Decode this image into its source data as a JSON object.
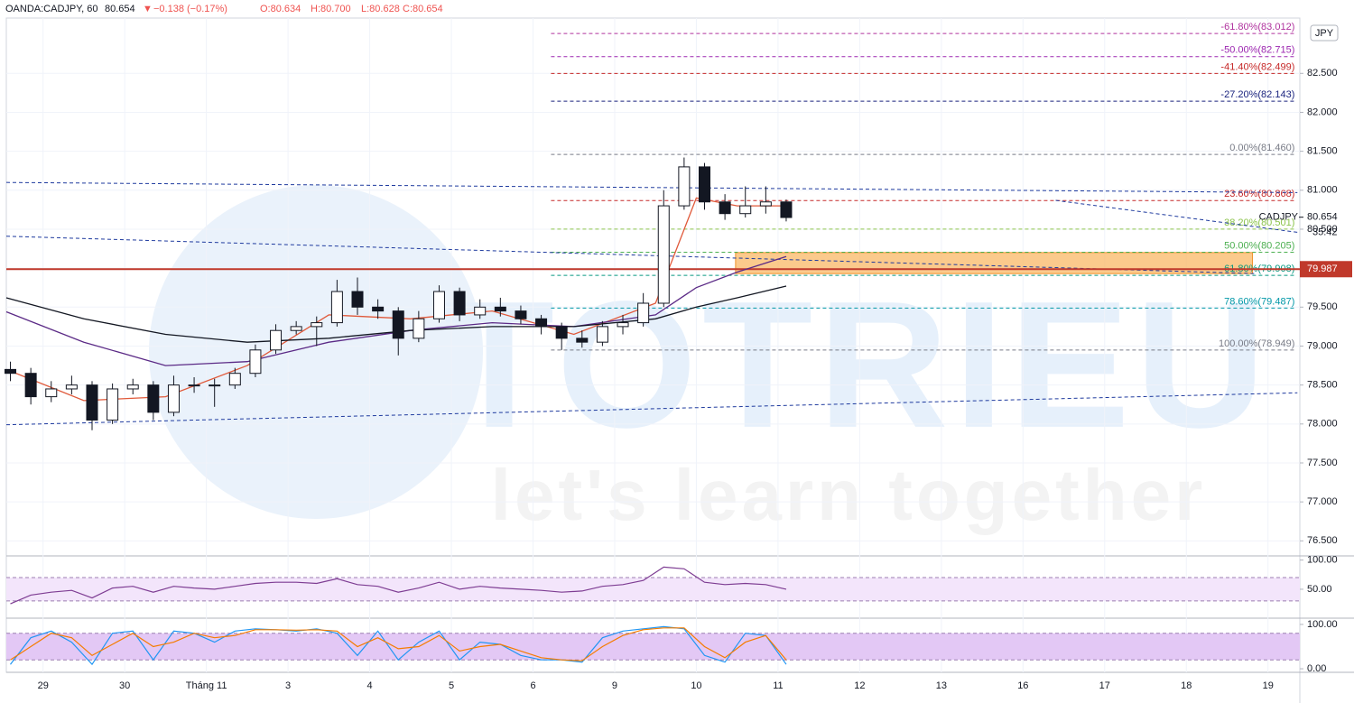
{
  "header": {
    "symbol": "OANDA:CADJPY, 60",
    "last": "80.654",
    "arrow": "▼",
    "change": "−0.138 (−0.17%)",
    "o": "O:80.634",
    "h": "H:80.700",
    "l": "L:80.628",
    "c": "C:80.654"
  },
  "watermark": {
    "brand": "TOTRIEU",
    "slogan": "let's learn together"
  },
  "currency": "JPY",
  "chart_data": [
    {
      "type": "candlestick",
      "panel": "price",
      "x": [
        -0.4,
        -0.15,
        0.1,
        0.35,
        0.6,
        0.85,
        1.1,
        1.35,
        1.6,
        1.85,
        2.1,
        2.35,
        2.6,
        2.85,
        3.1,
        3.35,
        3.6,
        3.85,
        4.1,
        4.35,
        4.6,
        4.85,
        5.1,
        5.35,
        5.6,
        5.85,
        6.1,
        6.35,
        6.6,
        6.85,
        7.1,
        7.35,
        7.6,
        7.85,
        8.1,
        8.35,
        8.6,
        8.85,
        9.1
      ],
      "open": [
        78.7,
        78.65,
        78.35,
        78.45,
        78.5,
        78.05,
        78.45,
        78.5,
        78.15,
        78.5,
        78.5,
        78.5,
        78.65,
        78.95,
        79.2,
        79.25,
        79.3,
        79.7,
        79.5,
        79.45,
        79.1,
        79.35,
        79.7,
        79.4,
        79.5,
        79.45,
        79.35,
        79.25,
        79.1,
        79.05,
        79.25,
        79.3,
        79.55,
        80.8,
        81.3,
        80.85,
        80.7,
        80.8,
        80.85
      ],
      "high": [
        78.8,
        78.72,
        78.55,
        78.62,
        78.55,
        78.52,
        78.58,
        78.55,
        78.62,
        78.6,
        78.58,
        78.72,
        79.02,
        79.28,
        79.32,
        79.38,
        79.85,
        79.88,
        79.6,
        79.5,
        79.45,
        79.78,
        79.75,
        79.6,
        79.62,
        79.52,
        79.4,
        79.3,
        79.2,
        79.32,
        79.4,
        79.68,
        81.0,
        81.42,
        81.35,
        80.95,
        81.05,
        81.05,
        80.88
      ],
      "low": [
        78.55,
        78.25,
        78.28,
        78.38,
        77.92,
        78.0,
        78.38,
        78.05,
        78.1,
        78.4,
        78.22,
        78.45,
        78.6,
        78.9,
        79.15,
        79.0,
        79.25,
        79.4,
        79.35,
        78.88,
        79.05,
        79.3,
        79.32,
        79.35,
        79.38,
        79.28,
        79.15,
        78.95,
        78.98,
        79.0,
        79.15,
        79.25,
        79.5,
        80.75,
        80.75,
        80.62,
        80.65,
        80.7,
        80.6
      ],
      "close": [
        78.65,
        78.35,
        78.45,
        78.5,
        78.05,
        78.45,
        78.5,
        78.15,
        78.5,
        78.5,
        78.5,
        78.65,
        78.95,
        79.2,
        79.25,
        79.3,
        79.7,
        79.5,
        79.45,
        79.1,
        79.35,
        79.7,
        79.4,
        79.5,
        79.45,
        79.35,
        79.25,
        79.1,
        79.05,
        79.25,
        79.3,
        79.55,
        80.8,
        81.3,
        80.85,
        80.7,
        80.8,
        80.85,
        80.65
      ],
      "up_color": "#ffffff",
      "down_color": "#131722",
      "moving_averages": [
        {
          "color": "#e0593a",
          "x": [
            -0.45,
            0.5,
            1.5,
            2.5,
            3.5,
            4.5,
            5.5,
            6.5,
            7.5,
            8,
            8.5,
            9.1
          ],
          "values": [
            78.7,
            78.3,
            78.35,
            78.75,
            79.4,
            79.35,
            79.45,
            79.15,
            79.55,
            80.9,
            80.8,
            80.8
          ]
        },
        {
          "color": "#5b2a86",
          "x": [
            -0.45,
            0.5,
            1.5,
            2.5,
            3.5,
            4.5,
            5.5,
            6.5,
            7.5,
            8,
            8.5,
            9.1
          ],
          "values": [
            79.44,
            79.05,
            78.75,
            78.8,
            79.05,
            79.2,
            79.3,
            79.25,
            79.4,
            79.75,
            79.95,
            80.15
          ]
        },
        {
          "color": "#131722",
          "x": [
            -0.45,
            0.5,
            1.5,
            2.5,
            3.5,
            4.5,
            5.5,
            6.5,
            7.5,
            8,
            8.5,
            9.1
          ],
          "values": [
            79.62,
            79.35,
            79.15,
            79.05,
            79.1,
            79.2,
            79.25,
            79.25,
            79.35,
            79.5,
            79.62,
            79.77
          ]
        }
      ],
      "xlim": [
        -0.45,
        15.39
      ],
      "ylim": [
        76.33,
        83.21
      ],
      "xticks": [
        {
          "value": 0,
          "label": "29"
        },
        {
          "value": 1,
          "label": "30"
        },
        {
          "value": 2,
          "label": "Tháng 11"
        },
        {
          "value": 3,
          "label": "3"
        },
        {
          "value": 4,
          "label": "4"
        },
        {
          "value": 5,
          "label": "5"
        },
        {
          "value": 6,
          "label": "6"
        },
        {
          "value": 7,
          "label": "9"
        },
        {
          "value": 8,
          "label": "10"
        },
        {
          "value": 9,
          "label": "11"
        },
        {
          "value": 10,
          "label": "12"
        },
        {
          "value": 11,
          "label": "13"
        },
        {
          "value": 12,
          "label": "16"
        },
        {
          "value": 13,
          "label": "17"
        },
        {
          "value": 14,
          "label": "18"
        },
        {
          "value": 15,
          "label": "19"
        }
      ],
      "yticks": [
        {
          "value": 76.5,
          "label": "76.500"
        },
        {
          "value": 77,
          "label": "77.000"
        },
        {
          "value": 77.5,
          "label": "77.500"
        },
        {
          "value": 78,
          "label": "78.000"
        },
        {
          "value": 78.5,
          "label": "78.500"
        },
        {
          "value": 79,
          "label": "79.000"
        },
        {
          "value": 79.5,
          "label": "79.500"
        },
        {
          "value": 80,
          "label": "80.000"
        },
        {
          "value": 80.5,
          "label": "80.500"
        },
        {
          "value": 81,
          "label": "81.000"
        },
        {
          "value": 81.5,
          "label": "81.500"
        },
        {
          "value": 82,
          "label": "82.000"
        },
        {
          "value": 82.5,
          "label": "82.500"
        }
      ],
      "grid": true,
      "fib_xrange": [
        6.22,
        15.35
      ],
      "fib_levels": [
        {
          "value": 83.012,
          "label": "-61.80%(83.012)",
          "color": "#b0339e"
        },
        {
          "value": 82.715,
          "label": "-50.00%(82.715)",
          "color": "#9c27b0"
        },
        {
          "value": 82.499,
          "label": "-41.40%(82.499)",
          "color": "#c62828"
        },
        {
          "value": 82.143,
          "label": "-27.20%(82.143)",
          "color": "#1a237e"
        },
        {
          "value": 81.46,
          "label": "0.00%(81.460)",
          "color": "#787b86"
        },
        {
          "value": 80.868,
          "label": "23.60%(80.868)",
          "color": "#c62828"
        },
        {
          "value": 80.501,
          "label": "38.20%(80.501)",
          "color": "#8bc34a"
        },
        {
          "value": 80.205,
          "label": "50.00%(80.205)",
          "color": "#4caf50"
        },
        {
          "value": 79.908,
          "label": "61.80%(79.908)",
          "color": "#089981"
        },
        {
          "value": 79.487,
          "label": "78.60%(79.487)",
          "color": "#0097a7"
        },
        {
          "value": 78.949,
          "label": "100.00%(78.949)",
          "color": "#787b86"
        }
      ],
      "trendlines": [
        [
          -0.45,
          81.1,
          15.36,
          80.97
        ],
        [
          -0.45,
          80.41,
          14.85,
          79.93
        ],
        [
          12.4,
          80.87,
          15.36,
          80.46
        ],
        [
          -0.45,
          77.99,
          15.36,
          78.4
        ]
      ],
      "zone": {
        "x": [
          8.48,
          14.81
        ],
        "y": [
          79.93,
          80.2
        ],
        "color": "#f9b35b"
      },
      "level": {
        "value": 79.987,
        "label": "79.987",
        "color": "#c0392b"
      },
      "last_price": {
        "value": 80.654,
        "symbol": "CADJPY",
        "label": "80.654",
        "countdown": "35:42"
      }
    },
    {
      "type": "line",
      "panel": "rsi",
      "x": [
        -0.4,
        -0.15,
        0.1,
        0.35,
        0.6,
        0.85,
        1.1,
        1.35,
        1.6,
        1.85,
        2.1,
        2.35,
        2.6,
        2.85,
        3.1,
        3.35,
        3.6,
        3.85,
        4.1,
        4.35,
        4.6,
        4.85,
        5.1,
        5.35,
        5.6,
        5.85,
        6.1,
        6.35,
        6.6,
        6.85,
        7.1,
        7.35,
        7.6,
        7.85,
        8.1,
        8.35,
        8.6,
        8.85,
        9.1
      ],
      "series": [
        {
          "color": "#7e3d93",
          "values": [
            25,
            40,
            45,
            48,
            35,
            52,
            55,
            45,
            55,
            52,
            50,
            55,
            60,
            62,
            62,
            60,
            68,
            58,
            55,
            45,
            52,
            62,
            50,
            55,
            52,
            50,
            48,
            45,
            47,
            55,
            58,
            65,
            88,
            85,
            62,
            58,
            60,
            58,
            50
          ]
        }
      ],
      "ylim": [
        2,
        104
      ],
      "yticks": [
        {
          "value": 100,
          "label": "100.00"
        },
        {
          "value": 50,
          "label": "50.00"
        }
      ],
      "bands": [
        30,
        70
      ],
      "band_color": "#f3e5fb"
    },
    {
      "type": "line",
      "panel": "stoch",
      "x": [
        -0.4,
        -0.15,
        0.1,
        0.35,
        0.6,
        0.85,
        1.1,
        1.35,
        1.6,
        1.85,
        2.1,
        2.35,
        2.6,
        2.85,
        3.1,
        3.35,
        3.6,
        3.85,
        4.1,
        4.35,
        4.6,
        4.85,
        5.1,
        5.35,
        5.6,
        5.85,
        6.1,
        6.35,
        6.6,
        6.85,
        7.1,
        7.35,
        7.6,
        7.85,
        8.1,
        8.35,
        8.6,
        8.85,
        9.1
      ],
      "series": [
        {
          "color": "#2196f3",
          "values": [
            10,
            70,
            85,
            60,
            10,
            80,
            85,
            20,
            85,
            80,
            60,
            85,
            90,
            88,
            85,
            90,
            80,
            30,
            85,
            20,
            60,
            85,
            20,
            60,
            55,
            30,
            20,
            20,
            15,
            70,
            85,
            90,
            95,
            90,
            30,
            15,
            80,
            75,
            10
          ]
        },
        {
          "color": "#f57c00",
          "values": [
            20,
            50,
            80,
            70,
            30,
            55,
            80,
            50,
            60,
            80,
            70,
            75,
            88,
            88,
            87,
            88,
            85,
            50,
            70,
            45,
            50,
            75,
            40,
            50,
            55,
            40,
            25,
            20,
            18,
            50,
            75,
            88,
            92,
            92,
            50,
            25,
            60,
            75,
            20
          ]
        }
      ],
      "ylim": [
        -8,
        110
      ],
      "yticks": [
        {
          "value": 100,
          "label": "100.00"
        },
        {
          "value": 0,
          "label": "0.00"
        }
      ],
      "bands": [
        20,
        80
      ],
      "band_color": "#e3c8f5"
    }
  ]
}
